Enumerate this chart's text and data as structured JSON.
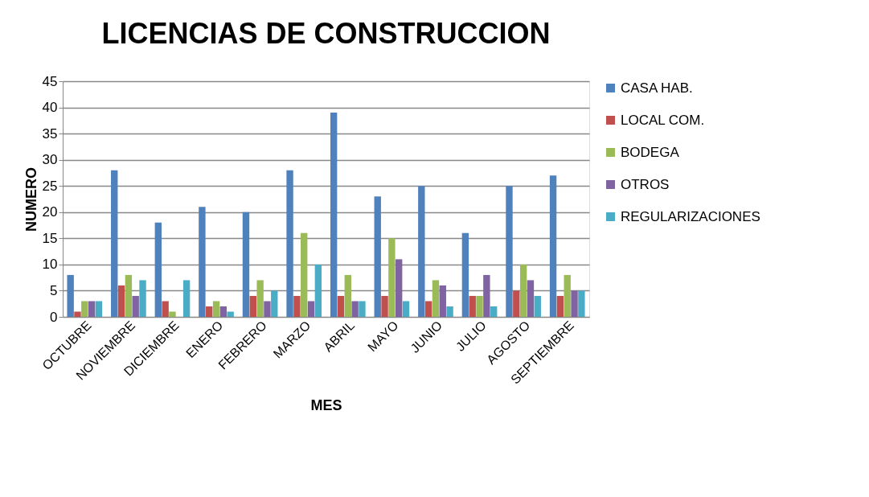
{
  "chart_data": {
    "type": "bar",
    "title": "LICENCIAS DE CONSTRUCCION",
    "xlabel": "MES",
    "ylabel": "NUMERO",
    "categories": [
      "OCTUBRE",
      "NOVIEMBRE",
      "DICIEMBRE",
      "ENERO",
      "FEBRERO",
      "MARZO",
      "ABRIL",
      "MAYO",
      "JUNIO",
      "JULIO",
      "AGOSTO",
      "SEPTIEMBRE"
    ],
    "series": [
      {
        "name": "CASA HAB.",
        "color": "#4f81bd",
        "values": [
          8,
          28,
          18,
          21,
          20,
          28,
          39,
          23,
          25,
          16,
          25,
          27
        ]
      },
      {
        "name": "LOCAL COM.",
        "color": "#c0504d",
        "values": [
          1,
          6,
          3,
          2,
          4,
          4,
          4,
          4,
          3,
          4,
          5,
          4
        ]
      },
      {
        "name": "BODEGA",
        "color": "#9bbb59",
        "values": [
          3,
          8,
          1,
          3,
          7,
          16,
          8,
          15,
          7,
          4,
          10,
          8
        ]
      },
      {
        "name": "OTROS",
        "color": "#8064a2",
        "values": [
          3,
          4,
          0,
          2,
          3,
          3,
          3,
          11,
          6,
          8,
          7,
          5
        ]
      },
      {
        "name": "REGULARIZACIONES",
        "color": "#4bacc6",
        "values": [
          3,
          7,
          7,
          1,
          5,
          10,
          3,
          3,
          2,
          2,
          4,
          5
        ]
      }
    ],
    "ylim": [
      0,
      45
    ],
    "yticks": [
      0,
      5,
      10,
      15,
      20,
      25,
      30,
      35,
      40,
      45
    ],
    "grid": "y",
    "legend": "right"
  }
}
